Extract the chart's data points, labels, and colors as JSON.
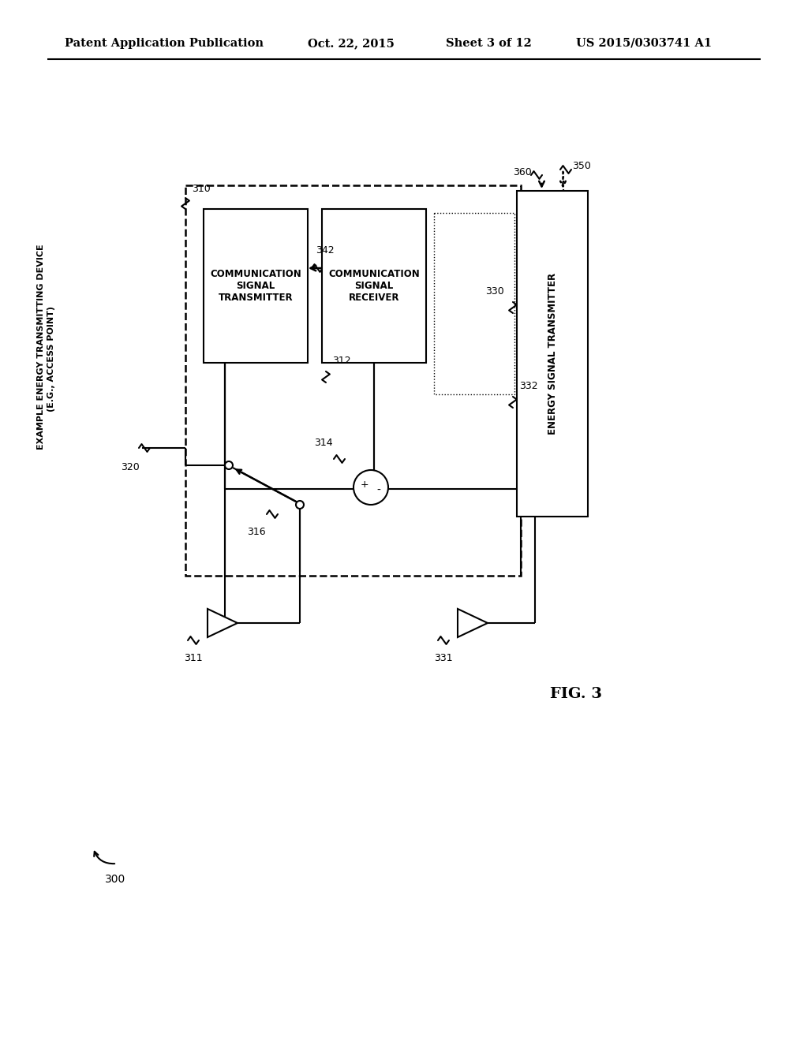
{
  "title_header": "Patent Application Publication",
  "date_header": "Oct. 22, 2015",
  "sheet_header": "Sheet 3 of 12",
  "patent_header": "US 2015/0303741 A1",
  "fig_label": "FIG. 3",
  "diagram_label": "300",
  "side_label_line1": "EXAMPLE ENERGY TRANSMITTING DEVICE",
  "side_label_line2": "(E.G., ACCESS POINT)",
  "comm_tx_label": "COMMUNICATION SIGNAL\nTRANSMITTER",
  "comm_rx_label": "COMMUNICATION SIGNAL\nRECEIVER",
  "energy_tx_label": "ENERGY SIGNAL TRANSMITTER",
  "ref_310": "310",
  "ref_312": "312",
  "ref_314": "314",
  "ref_316": "316",
  "ref_320": "320",
  "ref_330": "330",
  "ref_331": "331",
  "ref_332": "332",
  "ref_342": "342",
  "ref_350": "350",
  "ref_360": "360",
  "ref_311": "311",
  "bg_color": "#ffffff",
  "line_color": "#000000"
}
